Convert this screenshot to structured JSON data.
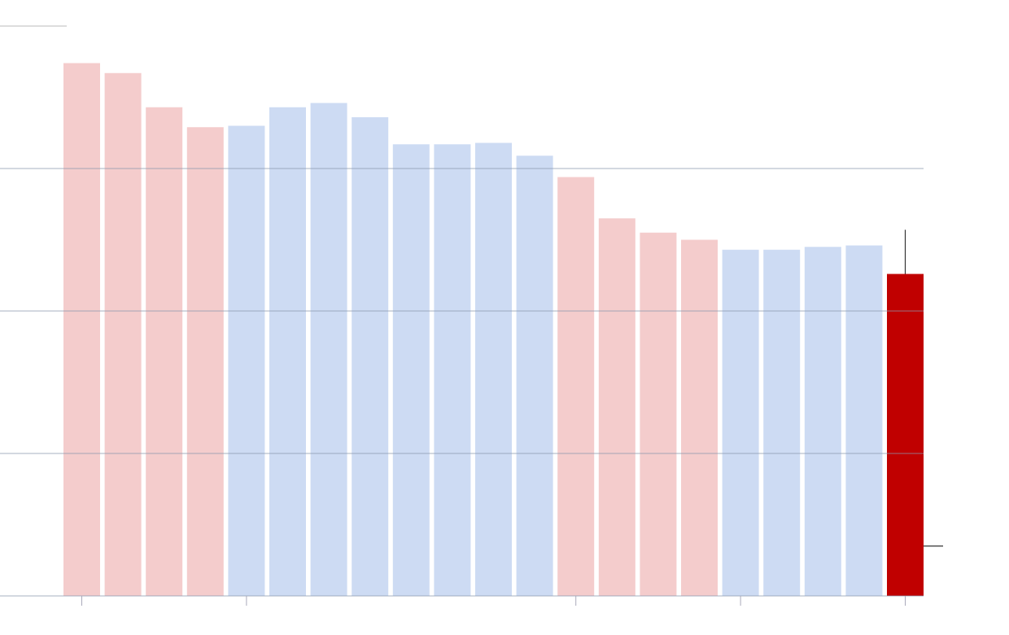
{
  "chart_data": {
    "type": "bar",
    "categories": [
      null,
      null,
      null,
      null,
      null,
      null,
      null,
      null,
      null,
      null,
      null,
      null,
      null,
      null,
      null,
      null,
      null,
      null,
      null,
      null,
      null
    ],
    "values": [
      3.74,
      3.67,
      3.43,
      3.29,
      3.3,
      3.43,
      3.46,
      3.36,
      3.17,
      3.17,
      3.18,
      3.09,
      2.94,
      2.65,
      2.55,
      2.5,
      2.43,
      2.43,
      2.45,
      2.46,
      2.26
    ],
    "colors": [
      "#f4cccc",
      "#f4cccc",
      "#f4cccc",
      "#f4cccc",
      "#cddbf3",
      "#cddbf3",
      "#cddbf3",
      "#cddbf3",
      "#cddbf3",
      "#cddbf3",
      "#cddbf3",
      "#cddbf3",
      "#f4cccc",
      "#f4cccc",
      "#f4cccc",
      "#f4cccc",
      "#cddbf3",
      "#cddbf3",
      "#cddbf3",
      "#cddbf3",
      "#c00000"
    ],
    "error_range": [
      0.35,
      2.57
    ],
    "ylim": [
      0,
      4
    ],
    "yticks": [
      0,
      1,
      2,
      3,
      4
    ],
    "grid": true,
    "xticks": [
      0,
      4,
      12,
      16,
      20
    ]
  }
}
